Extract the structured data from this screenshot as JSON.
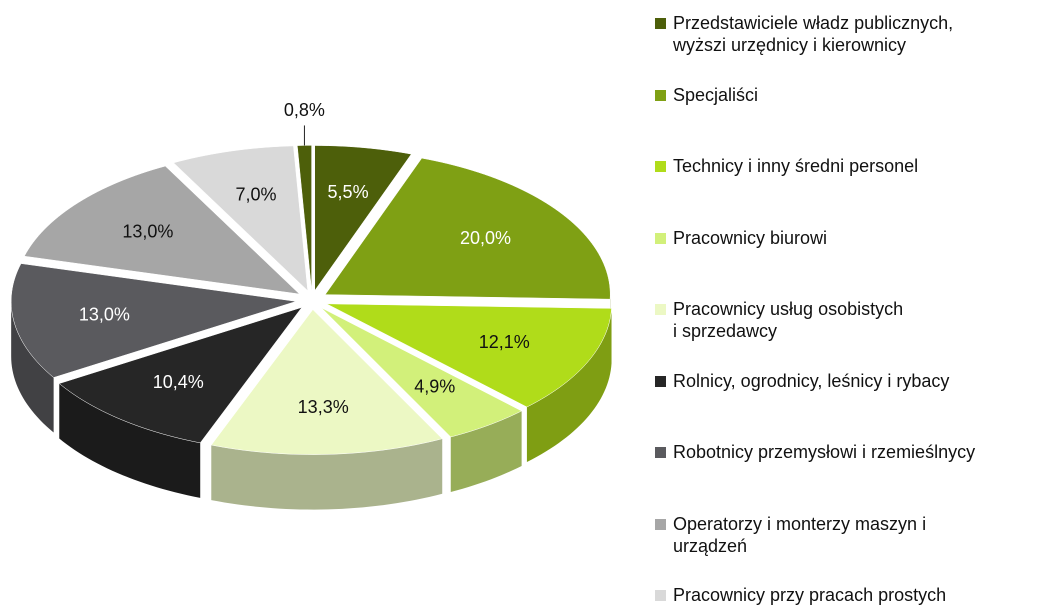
{
  "chart_data": {
    "type": "pie",
    "categories": [
      "Przedstawiciele władz publicznych,\nwyższi urzędnicy i kierownicy",
      "Specjaliści",
      "Technicy i inny średni personel",
      "Pracownicy biurowi",
      "Pracownicy usług osobistych\ni sprzedawcy",
      "Rolnicy, ogrodnicy, leśnicy i rybacy",
      "Robotnicy przemysłowi  i rzemieślnycy",
      "Operatorzy i monterzy maszyn i\nurządzeń",
      "Pracownicy przy pracach prostych",
      null
    ],
    "values": [
      5.5,
      20.0,
      12.1,
      4.9,
      13.3,
      10.4,
      13.0,
      13.0,
      7.0,
      0.8
    ],
    "value_labels": [
      "5,5%",
      "20,0%",
      "12,1%",
      "4,9%",
      "13,3%",
      "10,4%",
      "13,0%",
      "13,0%",
      "7,0%",
      "0,8%"
    ],
    "colors": [
      "#4d5f0a",
      "#7fa014",
      "#b0dc1a",
      "#d2f07a",
      "#ecf8c4",
      "#262626",
      "#5a5a5e",
      "#a6a6a6",
      "#d9d9d9",
      "#4d5f0a"
    ],
    "legend": "right"
  }
}
